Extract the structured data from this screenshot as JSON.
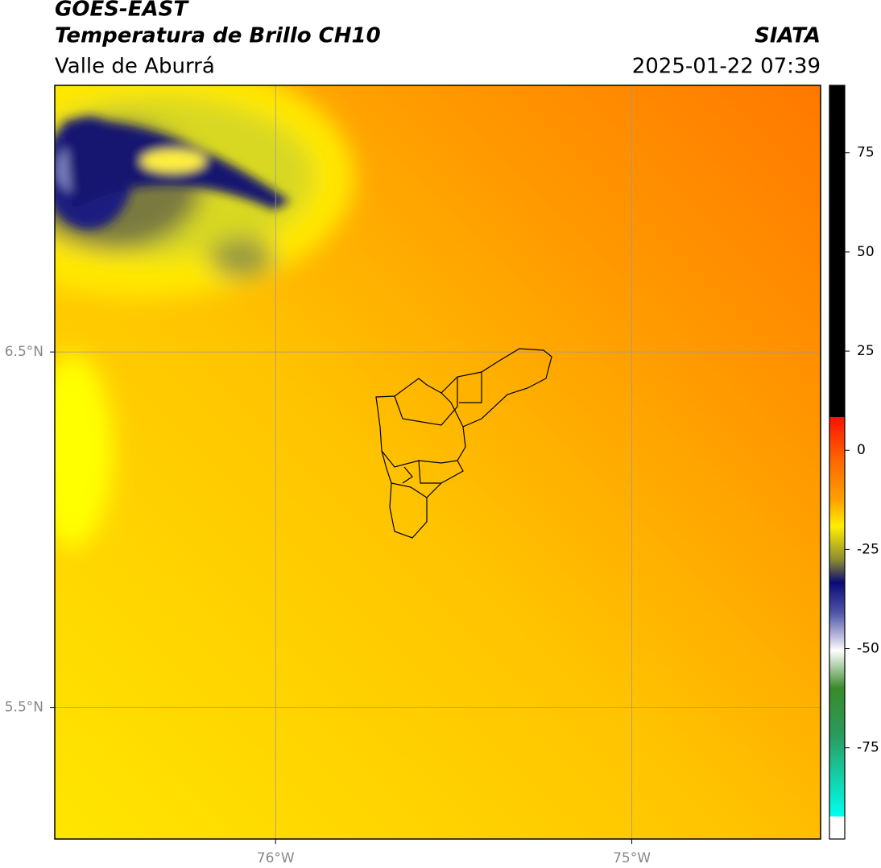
{
  "map": {
    "title": "GOES-EAST",
    "subtitle": "Temperatura de Brillo CH10",
    "region": "Valle de Aburrá",
    "source": "SIATA",
    "datetime": "2025-01-22 07:39",
    "lonlim": [
      -76.62,
      -74.47
    ],
    "latlim": [
      5.13,
      7.25
    ],
    "lonticks": [
      {
        "value": -76,
        "label": "76°W"
      },
      {
        "value": -75,
        "label": "75°W"
      }
    ],
    "latticks": [
      {
        "value": 6.5,
        "label": "6.5°N"
      },
      {
        "value": 5.5,
        "label": "5.5°N"
      }
    ],
    "grid": true,
    "colorbar": {
      "lim": [
        -98,
        92
      ],
      "ticks": [
        75,
        50,
        25,
        0,
        -25,
        -50,
        -75
      ]
    }
  }
}
